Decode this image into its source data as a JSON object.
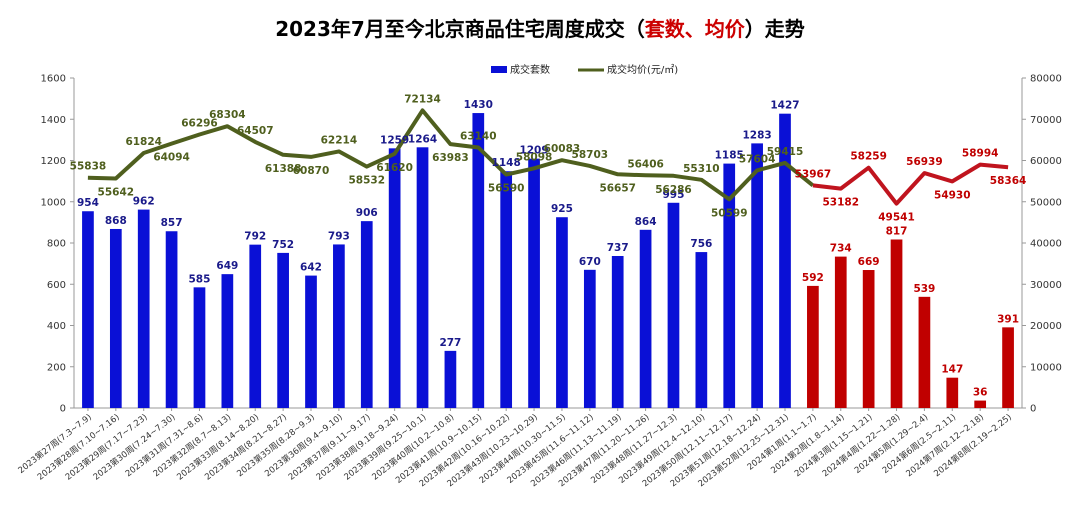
{
  "chart_data": {
    "type": "bar",
    "title": {
      "part1": "2023年7月至今北京商品住宅周度成交（",
      "highlight": "套数、均价",
      "part2": "）走势"
    },
    "categories": [
      "2023第27周(7.3~7.9)",
      "2023第28周(7.10~7.16)",
      "2023第29周(7.17~7.23)",
      "2023第30周(7.24~7.30)",
      "2023第31周(7.31~8.6)",
      "2023第32周(8.7~8.13)",
      "2023第33周(8.14~8.20)",
      "2023第34周(8.21~8.27)",
      "2023第35周(8.28~9.3)",
      "2023第36周(9.4~9.10)",
      "2023第37周(9.11~9.17)",
      "2023第38周(9.18~9.24)",
      "2023第39周(9.25~10.1)",
      "2023第40周(10.2~10.8)",
      "2023第41周(10.9~10.15)",
      "2023第42周(10.16~10.22)",
      "2023第43周(10.23~10.29)",
      "2023第44周(10.30~11.5)",
      "2023第45周(11.6~11.12)",
      "2023第46周(11.13~11.19)",
      "2023第47周(11.20~11.26)",
      "2023第48周(11.27~12.3)",
      "2023第49周(12.4~12.10)",
      "2023第50周(12.11~12.17)",
      "2023第51周(12.18~12.24)",
      "2023第52周(12.25~12.31)",
      "2024第1周(1.1~1.7)",
      "2024第2周(1.8~1.14)",
      "2024第3周(1.15~1.21)",
      "2024第4周(1.22~1.28)",
      "2024第5周(1.29~2.4)",
      "2024第6周(2.5~2.11)",
      "2024第7周(2.12~2.18)",
      "2024第8周(2.19~2.25)"
    ],
    "series": [
      {
        "name": "成交套数",
        "type": "bar",
        "axis": "left",
        "values": [
          954,
          868,
          962,
          857,
          585,
          649,
          792,
          752,
          642,
          793,
          906,
          1259,
          1264,
          277,
          1430,
          1148,
          1209,
          925,
          670,
          737,
          864,
          995,
          756,
          1185,
          1283,
          1427,
          592,
          734,
          669,
          817,
          539,
          147,
          36,
          391
        ]
      },
      {
        "name": "成交均价(元/㎡)",
        "type": "line",
        "axis": "right",
        "values": [
          55838,
          55642,
          61824,
          64094,
          66296,
          68304,
          64507,
          61388,
          60870,
          62214,
          58532,
          61620,
          72134,
          63983,
          63140,
          56590,
          58098,
          60083,
          58703,
          56657,
          56406,
          56286,
          55310,
          50599,
          57604,
          59415,
          53967,
          53182,
          58259,
          49541,
          56939,
          54930,
          58994,
          58364
        ]
      }
    ],
    "yleft": {
      "min": 0,
      "max": 1600,
      "step": 200
    },
    "yright": {
      "min": 0,
      "max": 80000,
      "step": 10000
    },
    "colors": {
      "bar_2023": "#0a10d6",
      "bar_2024": "#c00000",
      "line_2023": "#4f5f1e",
      "line_2024": "#c0141e",
      "bar_label_2023": "#1a1a8a",
      "bar_label_2024": "#c00000",
      "line_label_2023": "#4f5f1e",
      "line_label_2024": "#c00000"
    },
    "legend_placement": "top-center",
    "grid": false
  }
}
